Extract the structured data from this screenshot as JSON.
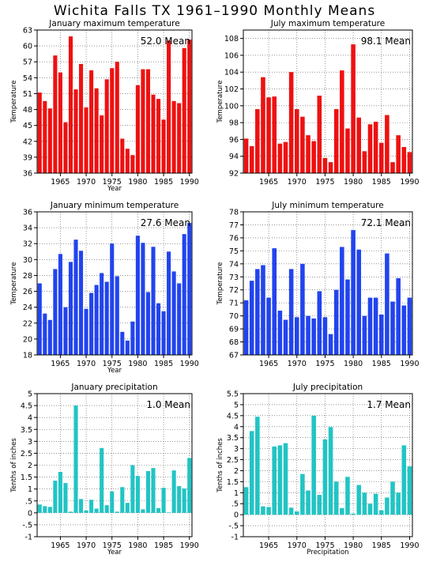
{
  "page_title": "Wichita Falls TX   1961–1990 Monthly Means",
  "chart_data": [
    {
      "id": "jan-max",
      "type": "bar",
      "title": "January maximum temperature",
      "xlabel": "Year",
      "ylabel": "Temperature",
      "annotation": "52.0 Mean",
      "color": "#ee1111",
      "ylim": [
        36,
        63
      ],
      "yticks": [
        36,
        39,
        42,
        45,
        48,
        51,
        54,
        57,
        60,
        63
      ],
      "ytick_labels": [
        "36",
        "39",
        "42",
        "45",
        "48",
        "51",
        "54",
        "57",
        "60",
        "63"
      ],
      "xlim": [
        1960.5,
        1990.5
      ],
      "xticks": [
        1965,
        1970,
        1975,
        1980,
        1985,
        1990
      ],
      "xtick_labels": [
        "1965",
        "1970",
        "1975",
        "1980",
        "1985",
        "1990"
      ],
      "x": [
        1961,
        1962,
        1963,
        1964,
        1965,
        1966,
        1967,
        1968,
        1969,
        1970,
        1971,
        1972,
        1973,
        1974,
        1975,
        1976,
        1977,
        1978,
        1979,
        1980,
        1981,
        1982,
        1983,
        1984,
        1985,
        1986,
        1987,
        1988,
        1989,
        1990
      ],
      "values": [
        51.2,
        49.6,
        48.2,
        58.2,
        55.0,
        45.6,
        61.8,
        51.8,
        56.6,
        48.4,
        55.4,
        52.0,
        46.9,
        53.7,
        55.8,
        57.0,
        42.5,
        40.6,
        39.4,
        52.6,
        55.6,
        55.6,
        50.8,
        50.0,
        46.1,
        61.0,
        49.6,
        49.2,
        59.6,
        61.2
      ]
    },
    {
      "id": "jul-max",
      "type": "bar",
      "title": "July maximum temperature",
      "xlabel": "",
      "ylabel": "Temperature",
      "annotation": "98.1 Mean",
      "color": "#ee1111",
      "ylim": [
        92,
        109
      ],
      "yticks": [
        92,
        94,
        96,
        98,
        100,
        102,
        104,
        106,
        108
      ],
      "ytick_labels": [
        "92",
        "94",
        "96",
        "98",
        "100",
        "102",
        "104",
        "106",
        "108"
      ],
      "xlim": [
        1960.5,
        1990.5
      ],
      "xticks": [
        1965,
        1970,
        1975,
        1980,
        1985,
        1990
      ],
      "xtick_labels": [
        "1965",
        "1970",
        "1975",
        "1980",
        "1985",
        "1990"
      ],
      "x": [
        1961,
        1962,
        1963,
        1964,
        1965,
        1966,
        1967,
        1968,
        1969,
        1970,
        1971,
        1972,
        1973,
        1974,
        1975,
        1976,
        1977,
        1978,
        1979,
        1980,
        1981,
        1982,
        1983,
        1984,
        1985,
        1986,
        1987,
        1988,
        1989,
        1990
      ],
      "values": [
        96.1,
        95.2,
        99.6,
        103.4,
        101.0,
        101.1,
        95.5,
        95.7,
        104.0,
        99.6,
        98.7,
        96.5,
        95.8,
        101.2,
        93.8,
        93.3,
        99.6,
        104.2,
        97.3,
        107.3,
        98.6,
        94.6,
        97.8,
        98.1,
        95.6,
        98.9,
        93.3,
        96.5,
        95.1,
        94.5
      ]
    },
    {
      "id": "jan-min",
      "type": "bar",
      "title": "January minimum temperature",
      "xlabel": "Year",
      "ylabel": "Temperature",
      "annotation": "27.6 Mean",
      "color": "#2244ee",
      "ylim": [
        18,
        36
      ],
      "yticks": [
        18,
        20,
        22,
        24,
        26,
        28,
        30,
        32,
        34,
        36
      ],
      "ytick_labels": [
        "18",
        "20",
        "22",
        "24",
        "26",
        "28",
        "30",
        "32",
        "34",
        "36"
      ],
      "xlim": [
        1960.5,
        1990.5
      ],
      "xticks": [
        1965,
        1970,
        1975,
        1980,
        1985,
        1990
      ],
      "xtick_labels": [
        "1965",
        "1970",
        "1975",
        "1980",
        "1985",
        "1990"
      ],
      "x": [
        1961,
        1962,
        1963,
        1964,
        1965,
        1966,
        1967,
        1968,
        1969,
        1970,
        1971,
        1972,
        1973,
        1974,
        1975,
        1976,
        1977,
        1978,
        1979,
        1980,
        1981,
        1982,
        1983,
        1984,
        1985,
        1986,
        1987,
        1988,
        1989,
        1990
      ],
      "values": [
        27.0,
        23.2,
        22.4,
        28.8,
        30.7,
        24.0,
        29.7,
        32.5,
        31.1,
        23.8,
        25.8,
        26.8,
        28.3,
        27.2,
        32.0,
        27.9,
        20.9,
        19.8,
        22.2,
        33.0,
        32.1,
        25.9,
        31.6,
        24.5,
        23.5,
        31.0,
        28.5,
        27.0,
        33.2,
        34.6
      ]
    },
    {
      "id": "jul-min",
      "type": "bar",
      "title": "July minimum temperature",
      "xlabel": "",
      "ylabel": "Temperature",
      "annotation": "72.1 Mean",
      "color": "#2244ee",
      "ylim": [
        67,
        78
      ],
      "yticks": [
        67,
        68,
        69,
        70,
        71,
        72,
        73,
        74,
        75,
        76,
        77,
        78
      ],
      "ytick_labels": [
        "67",
        "68",
        "69",
        "70",
        "71",
        "72",
        "73",
        "74",
        "75",
        "76",
        "77",
        "78"
      ],
      "xlim": [
        1960.5,
        1990.5
      ],
      "xticks": [
        1965,
        1970,
        1975,
        1980,
        1985,
        1990
      ],
      "xtick_labels": [
        "1965",
        "1970",
        "1975",
        "1980",
        "1985",
        "1990"
      ],
      "x": [
        1961,
        1962,
        1963,
        1964,
        1965,
        1966,
        1967,
        1968,
        1969,
        1970,
        1971,
        1972,
        1973,
        1974,
        1975,
        1976,
        1977,
        1978,
        1979,
        1980,
        1981,
        1982,
        1983,
        1984,
        1985,
        1986,
        1987,
        1988,
        1989,
        1990
      ],
      "values": [
        71.2,
        72.7,
        73.6,
        73.9,
        71.4,
        75.2,
        70.4,
        69.7,
        73.6,
        69.9,
        74.0,
        70.0,
        69.8,
        71.9,
        69.9,
        68.6,
        72.0,
        75.3,
        72.8,
        76.6,
        75.1,
        70.0,
        71.4,
        71.4,
        70.1,
        74.8,
        71.1,
        72.9,
        70.8,
        71.4
      ]
    },
    {
      "id": "jan-precip",
      "type": "bar",
      "title": "January precipitation",
      "xlabel": "Year",
      "ylabel": "Tenths of inches",
      "annotation": "1.0 Mean",
      "color": "#22c4c4",
      "baseline": 0,
      "ylim": [
        -1,
        5
      ],
      "yticks": [
        -1,
        -0.5,
        0,
        0.5,
        1,
        1.5,
        2,
        2.5,
        3,
        3.5,
        4,
        4.5,
        5
      ],
      "ytick_labels": [
        "-1",
        "-.5",
        "0",
        ".5",
        "1",
        "1.5",
        "2",
        "2.5",
        "3",
        "3.5",
        "4",
        "4.5",
        "5"
      ],
      "xlim": [
        1960.5,
        1990.5
      ],
      "xticks": [
        1965,
        1970,
        1975,
        1980,
        1985,
        1990
      ],
      "xtick_labels": [
        "1965",
        "1970",
        "1975",
        "1980",
        "1985",
        "1990"
      ],
      "x": [
        1961,
        1962,
        1963,
        1964,
        1965,
        1966,
        1967,
        1968,
        1969,
        1970,
        1971,
        1972,
        1973,
        1974,
        1975,
        1976,
        1977,
        1978,
        1979,
        1980,
        1981,
        1982,
        1983,
        1984,
        1985,
        1986,
        1987,
        1988,
        1989,
        1990
      ],
      "values": [
        0.35,
        0.28,
        0.25,
        1.35,
        1.72,
        1.25,
        0.05,
        4.5,
        0.58,
        0.1,
        0.55,
        0.18,
        2.72,
        0.32,
        0.9,
        0.05,
        1.08,
        0.42,
        2.0,
        1.55,
        0.15,
        1.75,
        1.88,
        0.2,
        1.05,
        0.02,
        1.78,
        1.12,
        1.02,
        2.3
      ]
    },
    {
      "id": "jul-precip",
      "type": "bar",
      "title": "July precipitation",
      "xlabel": "Precipitation",
      "ylabel": "Tenths of inches",
      "annotation": "1.7 Mean",
      "color": "#22c4c4",
      "baseline": 0,
      "ylim": [
        -1,
        5.5
      ],
      "yticks": [
        -1,
        -0.5,
        0,
        0.5,
        1,
        1.5,
        2,
        2.5,
        3,
        3.5,
        4,
        4.5,
        5,
        5.5
      ],
      "ytick_labels": [
        "-1",
        "-.5",
        "0",
        ".5",
        "1",
        "1.5",
        "2",
        "2.5",
        "3",
        "3.5",
        "4",
        "4.5",
        "5",
        "5.5"
      ],
      "xlim": [
        1960.5,
        1990.5
      ],
      "xticks": [
        1965,
        1970,
        1975,
        1980,
        1985,
        1990
      ],
      "xtick_labels": [
        "1965",
        "1970",
        "1975",
        "1980",
        "1985",
        "1990"
      ],
      "x": [
        1961,
        1962,
        1963,
        1964,
        1965,
        1966,
        1967,
        1968,
        1969,
        1970,
        1971,
        1972,
        1973,
        1974,
        1975,
        1976,
        1977,
        1978,
        1979,
        1980,
        1981,
        1982,
        1983,
        1984,
        1985,
        1986,
        1987,
        1988,
        1989,
        1990
      ],
      "values": [
        1.25,
        3.8,
        4.45,
        0.38,
        0.35,
        3.1,
        3.15,
        3.25,
        0.32,
        0.15,
        1.85,
        1.1,
        4.5,
        0.9,
        3.42,
        3.98,
        1.5,
        0.3,
        1.72,
        0.05,
        1.35,
        1.0,
        0.5,
        0.95,
        0.2,
        0.78,
        1.5,
        1.0,
        3.15,
        2.2
      ]
    }
  ]
}
